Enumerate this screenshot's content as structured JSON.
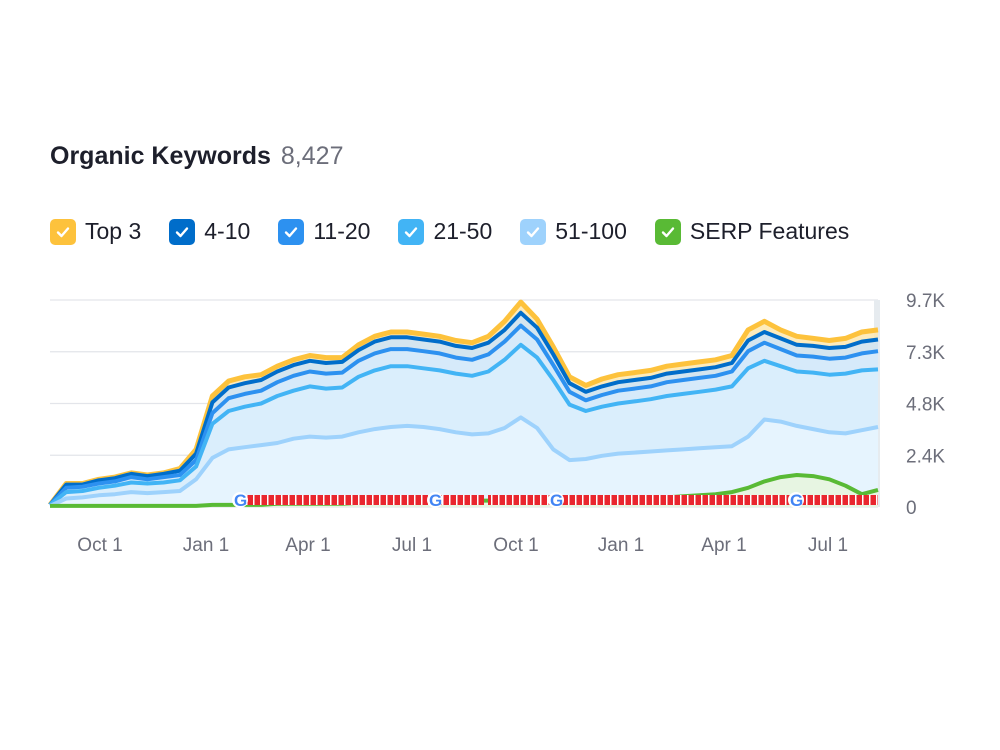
{
  "header": {
    "title": "Organic Keywords",
    "total": "8,427"
  },
  "legend": [
    {
      "label": "Top 3",
      "color": "#fdc23c"
    },
    {
      "label": "4-10",
      "color": "#006dca"
    },
    {
      "label": "11-20",
      "color": "#2d91f0"
    },
    {
      "label": "21-50",
      "color": "#42b4f5"
    },
    {
      "label": "51-100",
      "color": "#9ed2fc"
    },
    {
      "label": "SERP Features",
      "color": "#59ba35"
    }
  ],
  "chart_data": {
    "type": "area",
    "x_tick_labels": [
      "Oct 1",
      "Jan 1",
      "Apr 1",
      "Jul 1",
      "Oct 1",
      "Jan 1",
      "Apr 1",
      "Jul 1"
    ],
    "y_tick_labels": [
      "0",
      "2.4K",
      "4.8K",
      "7.3K",
      "9.7K"
    ],
    "ylim": [
      0,
      9700
    ],
    "x": [
      "Aug 1",
      "Aug 20",
      "Sep 10",
      "Oct 1",
      "Oct 20",
      "Nov 10",
      "Dec 1",
      "Dec 20",
      "Jan 1",
      "Jan 20",
      "Feb 1",
      "Feb 10",
      "Feb 20",
      "Mar 1",
      "Mar 15",
      "Apr 1",
      "Apr 15",
      "May 1",
      "May 15",
      "Jun 1",
      "Jun 15",
      "Jul 1",
      "Jul 15",
      "Aug 1",
      "Aug 15",
      "Sep 1",
      "Sep 15",
      "Oct 1",
      "Oct 10",
      "Oct 20",
      "Oct 28",
      "Nov 5",
      "Nov 15",
      "Nov 25",
      "Dec 5",
      "Dec 20",
      "Jan 1",
      "Jan 15",
      "Feb 1",
      "Feb 15",
      "Mar 1",
      "Mar 10",
      "Mar 20",
      "Apr 1",
      "Apr 15",
      "May 1",
      "May 15",
      "Jun 1",
      "Jun 15",
      "Jul 1",
      "Jul 15",
      "Aug 1"
    ],
    "series": [
      {
        "name": "Top 3",
        "values": [
          100,
          1100,
          1100,
          1300,
          1400,
          1600,
          1500,
          1600,
          1800,
          2700,
          5200,
          5900,
          6100,
          6200,
          6600,
          6900,
          7100,
          7000,
          7000,
          7600,
          8000,
          8200,
          8200,
          8100,
          8000,
          7800,
          7700,
          8000,
          8700,
          9600,
          8800,
          7500,
          6100,
          5700,
          6000,
          6200,
          6300,
          6400,
          6600,
          6700,
          6800,
          6900,
          7100,
          8300,
          8700,
          8300,
          8000,
          7900,
          7800,
          7900,
          8200,
          8300
        ]
      },
      {
        "name": "4-10",
        "values": [
          100,
          1050,
          1050,
          1250,
          1350,
          1550,
          1450,
          1550,
          1700,
          2500,
          4900,
          5600,
          5800,
          5950,
          6350,
          6650,
          6850,
          6750,
          6800,
          7350,
          7750,
          7950,
          7950,
          7850,
          7750,
          7550,
          7450,
          7700,
          8300,
          9100,
          8400,
          7150,
          5800,
          5400,
          5650,
          5850,
          5950,
          6050,
          6250,
          6350,
          6450,
          6550,
          6750,
          7800,
          8200,
          7900,
          7600,
          7550,
          7450,
          7500,
          7750,
          7850
        ]
      },
      {
        "name": "11-20",
        "values": [
          100,
          900,
          950,
          1100,
          1200,
          1400,
          1300,
          1400,
          1500,
          2200,
          4400,
          5100,
          5300,
          5450,
          5850,
          6150,
          6350,
          6250,
          6300,
          6850,
          7200,
          7400,
          7400,
          7300,
          7200,
          7000,
          6900,
          7150,
          7750,
          8500,
          7850,
          6650,
          5400,
          5000,
          5250,
          5450,
          5550,
          5650,
          5850,
          5950,
          6050,
          6150,
          6350,
          7300,
          7700,
          7400,
          7100,
          7050,
          6950,
          7000,
          7200,
          7300
        ]
      },
      {
        "name": "21-50",
        "values": [
          100,
          700,
          750,
          900,
          1000,
          1150,
          1100,
          1150,
          1250,
          1900,
          3900,
          4500,
          4700,
          4850,
          5200,
          5450,
          5650,
          5550,
          5600,
          6100,
          6400,
          6600,
          6600,
          6500,
          6400,
          6250,
          6150,
          6350,
          6900,
          7600,
          7000,
          5950,
          4800,
          4500,
          4700,
          4850,
          4950,
          5050,
          5200,
          5300,
          5400,
          5500,
          5650,
          6500,
          6850,
          6600,
          6350,
          6300,
          6200,
          6250,
          6400,
          6450
        ]
      },
      {
        "name": "51-100",
        "values": [
          50,
          400,
          450,
          550,
          600,
          700,
          650,
          700,
          750,
          1300,
          2300,
          2700,
          2800,
          2900,
          3000,
          3200,
          3300,
          3250,
          3300,
          3500,
          3650,
          3750,
          3800,
          3750,
          3650,
          3500,
          3400,
          3450,
          3700,
          4200,
          3700,
          2700,
          2200,
          2250,
          2400,
          2500,
          2550,
          2600,
          2650,
          2700,
          2750,
          2800,
          2850,
          3300,
          4100,
          4000,
          3800,
          3650,
          3500,
          3450,
          3600,
          3750
        ]
      },
      {
        "name": "SERP Features",
        "values": [
          50,
          50,
          50,
          50,
          50,
          50,
          50,
          50,
          50,
          50,
          100,
          100,
          100,
          100,
          150,
          150,
          150,
          150,
          150,
          200,
          200,
          250,
          250,
          300,
          300,
          300,
          300,
          300,
          300,
          300,
          300,
          350,
          350,
          350,
          350,
          350,
          400,
          400,
          450,
          500,
          550,
          600,
          700,
          900,
          1200,
          1400,
          1500,
          1450,
          1300,
          1000,
          600,
          800
        ]
      }
    ]
  }
}
